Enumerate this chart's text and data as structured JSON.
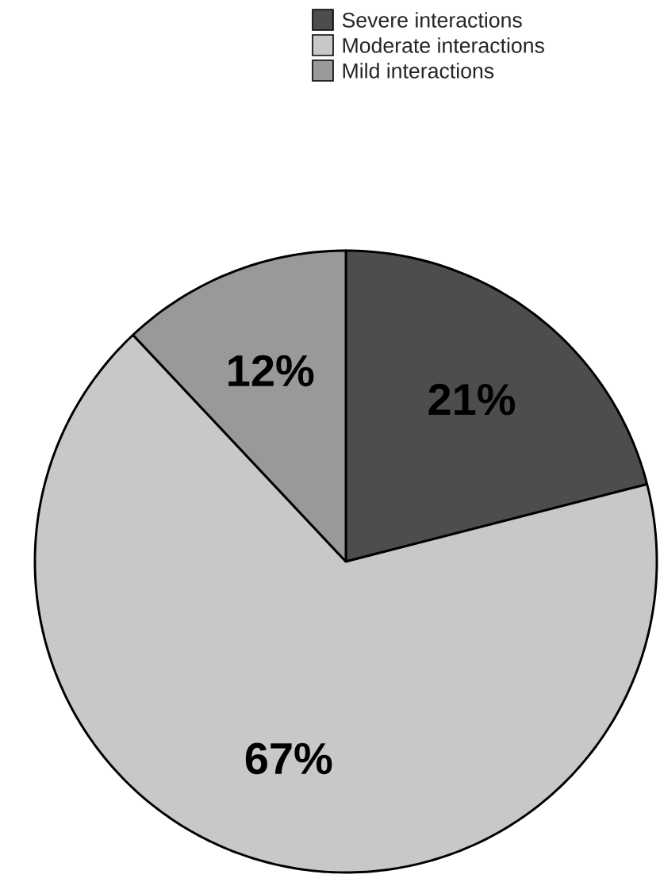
{
  "chart_data": {
    "type": "pie",
    "categories": [
      "Severe interactions",
      "Moderate interactions",
      "Mild interactions"
    ],
    "values": [
      21,
      67,
      12
    ],
    "colors": [
      "#4d4d4d",
      "#c8c8c8",
      "#999999"
    ],
    "value_labels": [
      "21%",
      "67%",
      "12%"
    ],
    "legend": "top"
  }
}
